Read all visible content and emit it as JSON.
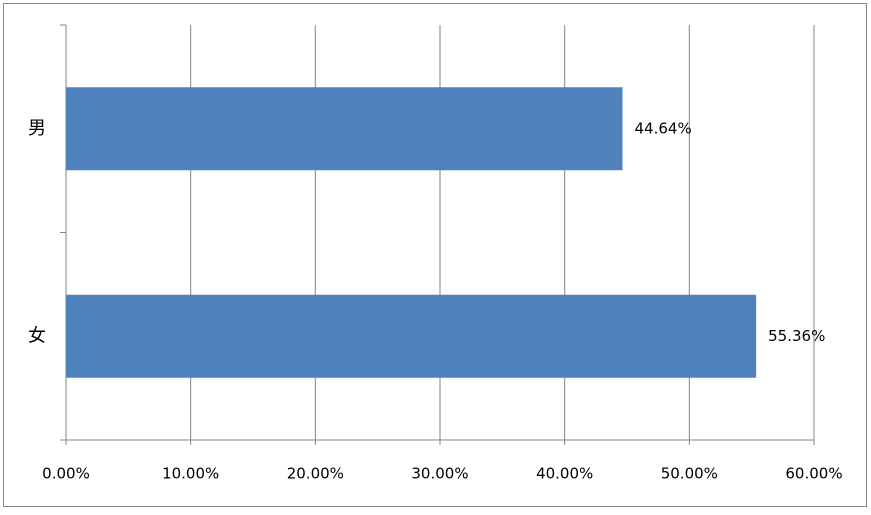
{
  "chart_data": {
    "type": "bar",
    "orientation": "horizontal",
    "categories": [
      "男",
      "女"
    ],
    "values": [
      44.64,
      55.36
    ],
    "value_labels": [
      "44.64%",
      "55.36%"
    ],
    "color": "#4f81bd",
    "xlim": [
      0,
      60
    ],
    "xticks": [
      {
        "value": 0,
        "label": "0.00%"
      },
      {
        "value": 10,
        "label": "10.00%"
      },
      {
        "value": 20,
        "label": "20.00%"
      },
      {
        "value": 30,
        "label": "30.00%"
      },
      {
        "value": 40,
        "label": "40.00%"
      },
      {
        "value": 50,
        "label": "50.00%"
      },
      {
        "value": 60,
        "label": "60.00%"
      }
    ],
    "grid": true
  }
}
